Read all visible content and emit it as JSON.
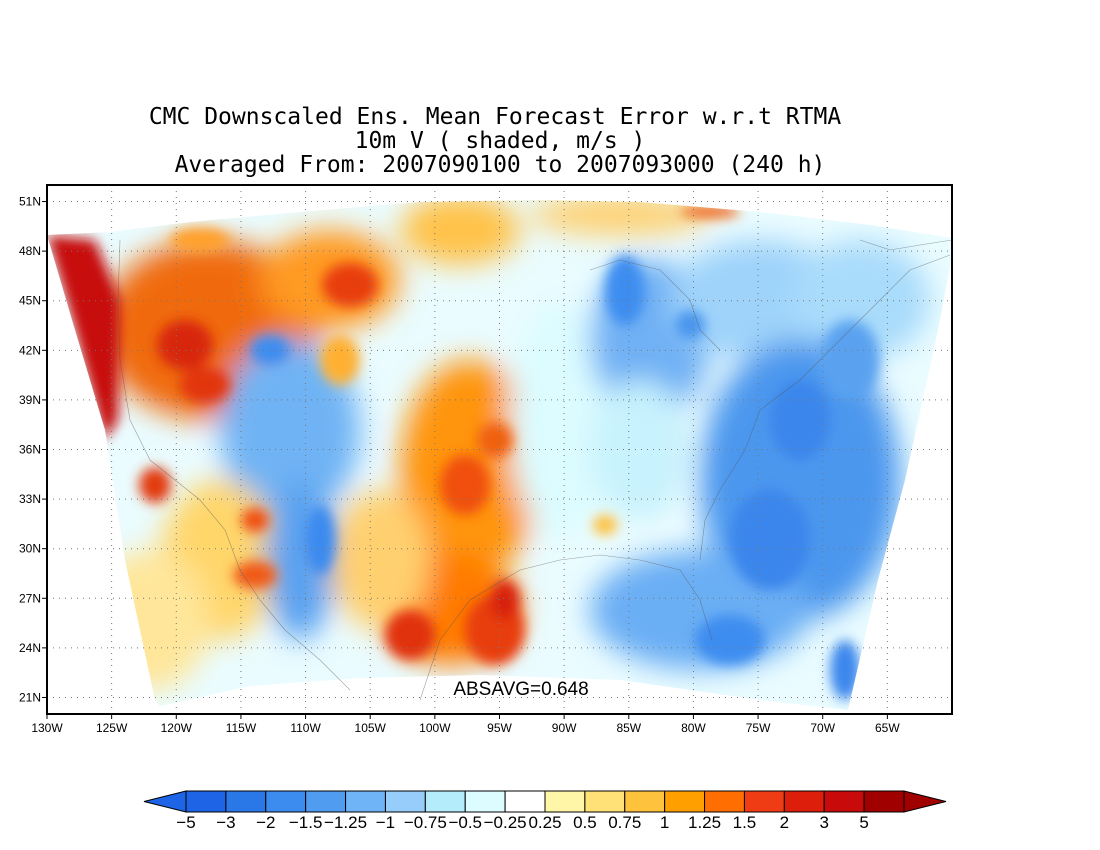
{
  "titles": [
    "CMC Downscaled Ens. Mean Forecast Error w.r.t RTMA",
    "10m V ( shaded, m/s )",
    "Averaged From: 2007090100 to 2007093000 (240 h)"
  ],
  "annotation": "ABSAVG=0.648",
  "map": {
    "lon_range": [
      -130,
      -60
    ],
    "lat_range": [
      20,
      52
    ],
    "lon_ticks": [
      {
        "value": -130,
        "label": "130W"
      },
      {
        "value": -125,
        "label": "125W"
      },
      {
        "value": -120,
        "label": "120W"
      },
      {
        "value": -115,
        "label": "115W"
      },
      {
        "value": -110,
        "label": "110W"
      },
      {
        "value": -105,
        "label": "105W"
      },
      {
        "value": -100,
        "label": "100W"
      },
      {
        "value": -95,
        "label": "95W"
      },
      {
        "value": -90,
        "label": "90W"
      },
      {
        "value": -85,
        "label": "85W"
      },
      {
        "value": -80,
        "label": "80W"
      },
      {
        "value": -75,
        "label": "75W"
      },
      {
        "value": -70,
        "label": "70W"
      },
      {
        "value": -65,
        "label": "65W"
      }
    ],
    "lat_ticks": [
      {
        "value": 21,
        "label": "21N"
      },
      {
        "value": 24,
        "label": "24N"
      },
      {
        "value": 27,
        "label": "27N"
      },
      {
        "value": 30,
        "label": "30N"
      },
      {
        "value": 33,
        "label": "33N"
      },
      {
        "value": 36,
        "label": "36N"
      },
      {
        "value": 39,
        "label": "39N"
      },
      {
        "value": 42,
        "label": "42N"
      },
      {
        "value": 45,
        "label": "45N"
      },
      {
        "value": 48,
        "label": "48N"
      },
      {
        "value": 51,
        "label": "51N"
      }
    ],
    "grid": "dotted"
  },
  "colorbar": {
    "levels": [
      "-5",
      "-3",
      "-2",
      "-1.5",
      "-1.25",
      "-1",
      "-0.75",
      "-0.5",
      "-0.25",
      "0.25",
      "0.5",
      "0.75",
      "1",
      "1.25",
      "1.5",
      "2",
      "3",
      "5"
    ],
    "colors": [
      "#1e64e6",
      "#2a78e8",
      "#3c8cef",
      "#4f9cf1",
      "#6eb4f6",
      "#96cdfa",
      "#b4ecfc",
      "#dcfcff",
      "#ffffff",
      "#fff6a8",
      "#ffe178",
      "#ffc23c",
      "#ffa000",
      "#ff6e00",
      "#f03c14",
      "#dc1e0a",
      "#c80a0a",
      "#a00000"
    ]
  }
}
